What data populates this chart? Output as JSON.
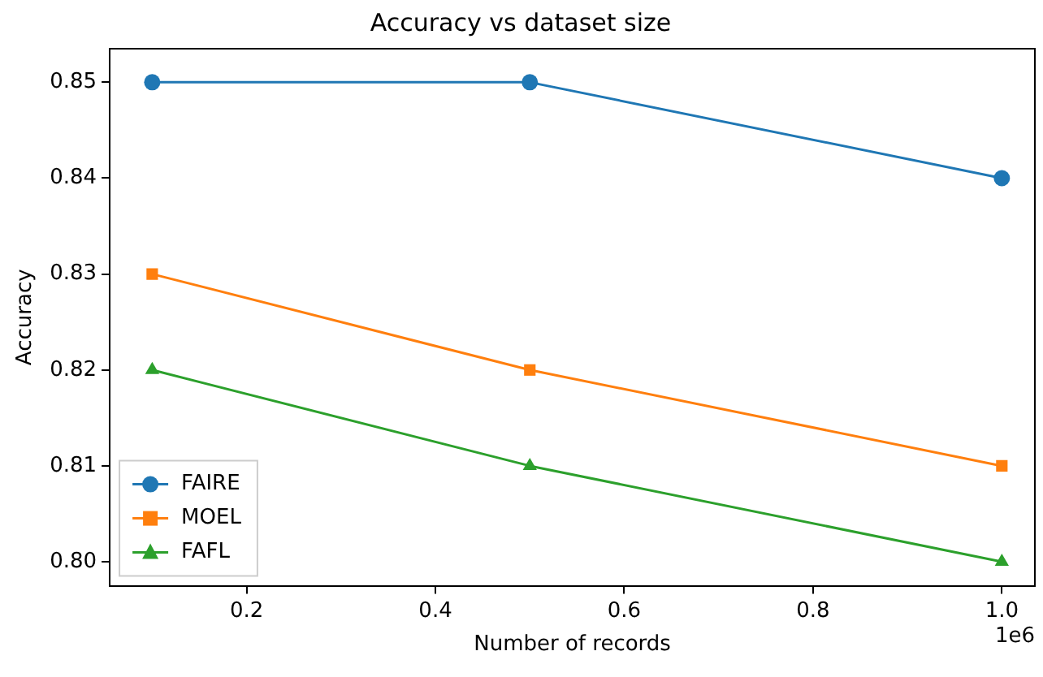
{
  "chart_data": {
    "type": "line",
    "title": "Accuracy vs dataset size",
    "xlabel": "Number of records",
    "ylabel": "Accuracy",
    "x": [
      0.1,
      0.5,
      1.0
    ],
    "series": [
      {
        "name": "FAIRE",
        "color": "#1f77b4",
        "marker": "circle",
        "values": [
          0.85,
          0.85,
          0.84
        ]
      },
      {
        "name": "MOEL",
        "color": "#ff7f0e",
        "marker": "square",
        "values": [
          0.83,
          0.82,
          0.81
        ]
      },
      {
        "name": "FAFL",
        "color": "#2ca02c",
        "marker": "triangle",
        "values": [
          0.82,
          0.81,
          0.8
        ]
      }
    ],
    "xlim": [
      0.055,
      1.035
    ],
    "xticks": [
      0.2,
      0.4,
      0.6,
      0.8,
      {
        "value": 1.0,
        "label": "1.0"
      }
    ],
    "ylim": [
      0.7975,
      0.8535
    ],
    "yticks": [
      {
        "value": 0.8,
        "label": "0.80"
      },
      {
        "value": 0.81,
        "label": "0.81"
      },
      {
        "value": 0.82,
        "label": "0.82"
      },
      {
        "value": 0.83,
        "label": "0.83"
      },
      {
        "value": 0.84,
        "label": "0.84"
      },
      {
        "value": 0.85,
        "label": "0.85"
      }
    ],
    "annotations": [
      "1e6"
    ],
    "legend": "bottom left",
    "grid": false,
    "line_style": "solid"
  }
}
